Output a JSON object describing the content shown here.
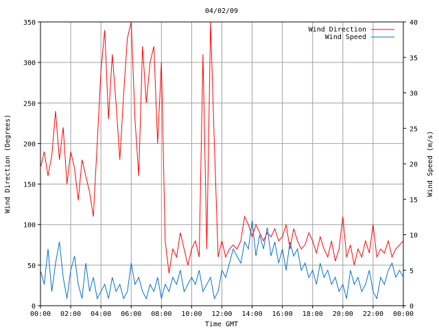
{
  "chart_data": {
    "type": "line",
    "title": "04/02/09",
    "xlabel": "Time GMT",
    "ylabel_left": "Wind Direction (Degrees)",
    "ylabel_right": "Wind Speed (m/s)",
    "x_ticks": [
      "00:00",
      "02:00",
      "04:00",
      "06:00",
      "08:00",
      "10:00",
      "12:00",
      "14:00",
      "16:00",
      "18:00",
      "20:00",
      "22:00",
      "00:00"
    ],
    "xlim_hours": [
      0,
      24
    ],
    "ylim_left": [
      0,
      350
    ],
    "y_ticks_left": [
      0,
      50,
      100,
      150,
      200,
      250,
      300,
      350
    ],
    "ylim_right": [
      0,
      40
    ],
    "y_ticks_right": [
      0,
      5,
      10,
      15,
      20,
      25,
      30,
      35,
      40
    ],
    "grid": true,
    "legend_position": "top-right",
    "series": [
      {
        "name": "Wind Direction",
        "color": "#ff0000",
        "axis": "left",
        "x_hours": [
          0,
          0.25,
          0.5,
          0.75,
          1,
          1.25,
          1.5,
          1.75,
          2,
          2.25,
          2.5,
          2.75,
          3,
          3.25,
          3.5,
          3.75,
          4,
          4.25,
          4.5,
          4.75,
          5,
          5.25,
          5.5,
          5.75,
          6,
          6.25,
          6.5,
          6.75,
          7,
          7.25,
          7.5,
          7.75,
          8,
          8.25,
          8.5,
          8.75,
          9,
          9.25,
          9.5,
          9.75,
          10,
          10.25,
          10.5,
          10.75,
          11,
          11.25,
          11.5,
          11.75,
          12,
          12.25,
          12.5,
          12.75,
          13,
          13.25,
          13.5,
          13.75,
          14,
          14.25,
          14.5,
          14.75,
          15,
          15.25,
          15.5,
          15.75,
          16,
          16.25,
          16.5,
          16.75,
          17,
          17.25,
          17.5,
          17.75,
          18,
          18.25,
          18.5,
          18.75,
          19,
          19.25,
          19.5,
          19.75,
          20,
          20.25,
          20.5,
          20.75,
          21,
          21.25,
          21.5,
          21.75,
          22,
          22.25,
          22.5,
          22.75,
          23,
          23.25,
          23.5,
          23.75,
          24
        ],
        "values": [
          170,
          190,
          160,
          185,
          240,
          180,
          220,
          150,
          190,
          170,
          130,
          180,
          160,
          140,
          110,
          200,
          290,
          340,
          230,
          310,
          250,
          180,
          260,
          330,
          350,
          230,
          160,
          320,
          250,
          300,
          320,
          200,
          300,
          80,
          40,
          70,
          60,
          90,
          70,
          50,
          70,
          80,
          60,
          310,
          70,
          350,
          200,
          60,
          80,
          60,
          70,
          75,
          70,
          80,
          110,
          100,
          85,
          100,
          90,
          80,
          90,
          85,
          95,
          80,
          85,
          100,
          70,
          95,
          80,
          70,
          75,
          90,
          80,
          65,
          85,
          70,
          60,
          80,
          55,
          70,
          110,
          60,
          75,
          50,
          70,
          60,
          80,
          65,
          100,
          60,
          70,
          65,
          80,
          60,
          70,
          75,
          80
        ]
      },
      {
        "name": "Wind Speed",
        "color": "#0070d0",
        "axis": "right",
        "x_hours": [
          0,
          0.25,
          0.5,
          0.75,
          1,
          1.25,
          1.5,
          1.75,
          2,
          2.25,
          2.5,
          2.75,
          3,
          3.25,
          3.5,
          3.75,
          4,
          4.25,
          4.5,
          4.75,
          5,
          5.25,
          5.5,
          5.75,
          6,
          6.25,
          6.5,
          6.75,
          7,
          7.25,
          7.5,
          7.75,
          8,
          8.25,
          8.5,
          8.75,
          9,
          9.25,
          9.5,
          9.75,
          10,
          10.25,
          10.5,
          10.75,
          11,
          11.25,
          11.5,
          11.75,
          12,
          12.25,
          12.5,
          12.75,
          13,
          13.25,
          13.5,
          13.75,
          14,
          14.25,
          14.5,
          14.75,
          15,
          15.25,
          15.5,
          15.75,
          16,
          16.25,
          16.5,
          16.75,
          17,
          17.25,
          17.5,
          17.75,
          18,
          18.25,
          18.5,
          18.75,
          19,
          19.25,
          19.5,
          19.75,
          20,
          20.25,
          20.5,
          20.75,
          21,
          21.25,
          21.5,
          21.75,
          22,
          22.25,
          22.5,
          22.75,
          23,
          23.25,
          23.5,
          23.75,
          24
        ],
        "values": [
          5,
          3,
          8,
          2,
          6,
          9,
          4,
          1,
          5,
          7,
          3,
          1,
          6,
          2,
          4,
          1,
          2,
          3,
          1,
          4,
          2,
          3,
          1,
          2,
          6,
          3,
          4,
          2,
          1,
          3,
          2,
          4,
          1,
          3,
          2,
          4,
          3,
          5,
          2,
          3,
          4,
          3,
          5,
          2,
          3,
          4,
          1,
          2,
          5,
          4,
          6,
          8,
          7,
          6,
          9,
          8,
          12,
          7,
          10,
          8,
          11,
          7,
          9,
          6,
          8,
          5,
          9,
          7,
          8,
          5,
          6,
          4,
          5,
          3,
          6,
          4,
          5,
          3,
          4,
          2,
          3,
          1,
          5,
          3,
          4,
          2,
          3,
          5,
          2,
          1,
          4,
          3,
          5,
          6,
          4,
          5,
          4
        ]
      }
    ]
  }
}
